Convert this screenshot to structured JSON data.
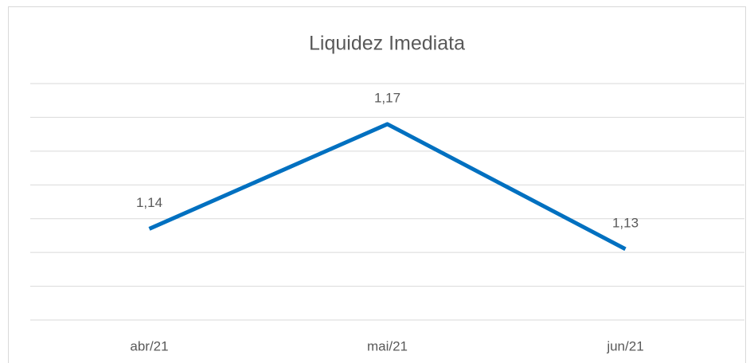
{
  "chart_data": {
    "type": "line",
    "title": "Liquidez Imediata",
    "categories": [
      "abr/21",
      "mai/21",
      "jun/21"
    ],
    "values": [
      1.137,
      1.168,
      1.131
    ],
    "value_labels": [
      "1,14",
      "1,17",
      "1,13"
    ],
    "color": "#0070c0",
    "ylim": [
      1.11,
      1.18
    ],
    "yticks": [
      1.11,
      1.12,
      1.13,
      1.14,
      1.15,
      1.16,
      1.17,
      1.18
    ],
    "grid": true
  }
}
